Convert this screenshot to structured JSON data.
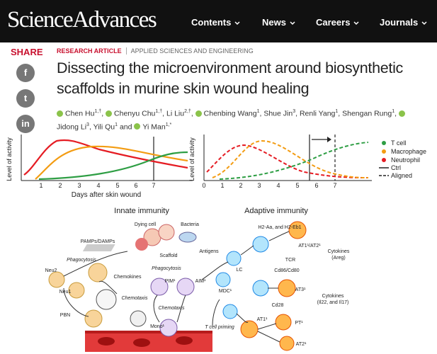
{
  "header": {
    "logo": "ScienceAdvances",
    "nav": [
      "Contents",
      "News",
      "Careers",
      "Journals"
    ]
  },
  "share": {
    "label": "SHARE",
    "icons": [
      "f",
      "t",
      "in"
    ]
  },
  "article": {
    "type": "RESEARCH ARTICLE",
    "section": "APPLIED SCIENCES AND ENGINEERING",
    "title": "Dissecting the microenvironment around biosynthetic scaffolds in murine skin wound healing",
    "authors": [
      {
        "name": "Chen Hu",
        "sup": "1,†"
      },
      {
        "name": "Chenyu Chu",
        "sup": "1,†"
      },
      {
        "name": "Li Liu",
        "sup": "2,†"
      },
      {
        "name": "Chenbing Wang",
        "sup": "1"
      },
      {
        "name": "Shue Jin",
        "sup": "3"
      },
      {
        "name": "Renli Yang",
        "sup": "1"
      },
      {
        "name": "Shengan Rung",
        "sup": "1"
      },
      {
        "name": "Jidong Li",
        "sup": "3"
      },
      {
        "name": "Yili Qu",
        "sup": "1"
      },
      {
        "name": "Yi Man",
        "sup": "1,*"
      }
    ],
    "separator": ",",
    "conjunction": "and"
  },
  "figure": {
    "y_label": "Level of activity",
    "x_label": "Days after skin wound",
    "left_xticks": [
      "1",
      "2",
      "3",
      "4",
      "5",
      "6",
      "7"
    ],
    "right_xticks": [
      "0",
      "1",
      "2",
      "3",
      "4",
      "5",
      "6",
      "7"
    ],
    "legend": [
      "T cell",
      "Macrophage",
      "Neutrophil",
      "Ctrl",
      "Aligned"
    ],
    "diagram": {
      "headings": [
        "Innate immunity",
        "Adaptive immunity"
      ],
      "labels": [
        "Dying cell",
        "Bacteria",
        "PAMPs/DAMPs",
        "Scaffold",
        "Phagocytosis",
        "Antigens",
        "H2-Aa, and H2-Eb1",
        "Cytokines",
        "(Areg)",
        "AT1¹/AT2¹",
        "TCR",
        "Neu2",
        "Chemokines",
        "Phagocytosis",
        "PIM¹",
        "AIM¹",
        "LC",
        "Cd86/Cd80",
        "Neu1",
        "MDC¹",
        "AT3¹",
        "Cytokines",
        "(Il22, and Il17)",
        "Chemotaxis",
        "Chemotaxis",
        "Cd28",
        "PBN",
        "T cell priming",
        "AT1¹",
        "PT¹",
        "Mono¹",
        "AT2¹"
      ]
    }
  }
}
